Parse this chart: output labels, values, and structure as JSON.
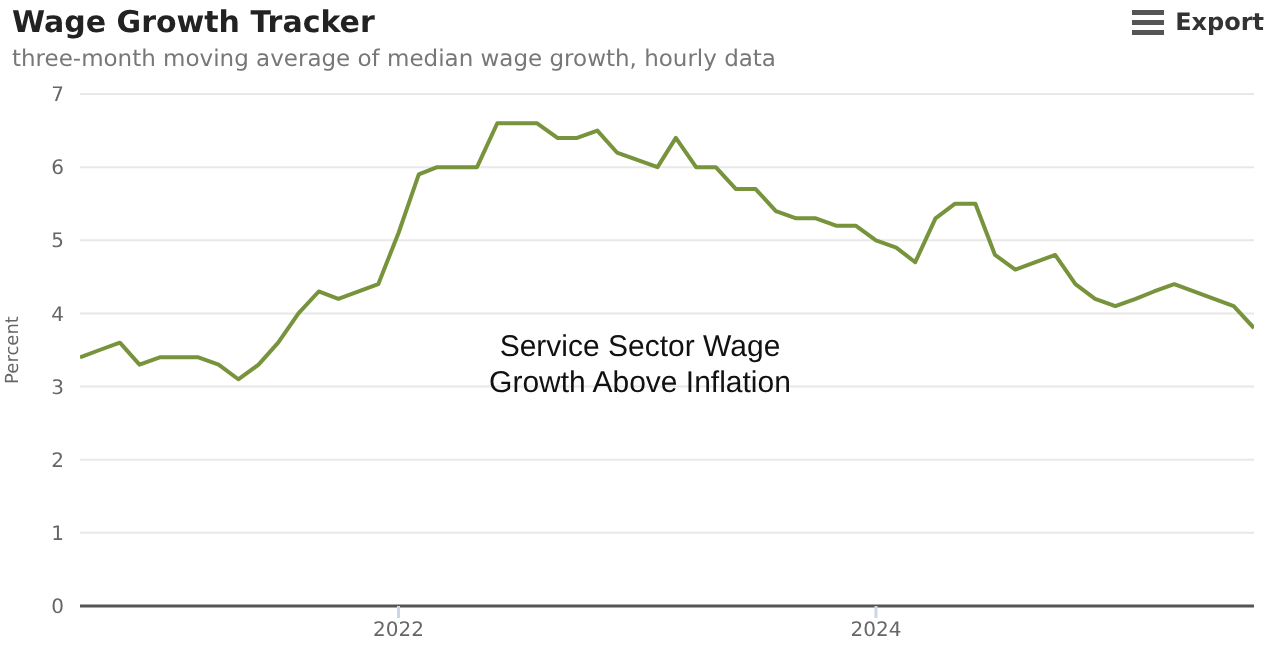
{
  "chart_data": {
    "type": "line",
    "title": "Wage Growth Tracker",
    "subtitle": "three-month moving average of median wage growth, hourly data",
    "ylabel": "Percent",
    "annotations": [
      "Service Sector Wage Growth Above Inflation",
      "Export"
    ],
    "x": [
      "2020-09",
      "2020-10",
      "2020-11",
      "2020-12",
      "2021-01",
      "2021-02",
      "2021-03",
      "2021-04",
      "2021-05",
      "2021-06",
      "2021-07",
      "2021-08",
      "2021-09",
      "2021-10",
      "2021-11",
      "2021-12",
      "2022-01",
      "2022-02",
      "2022-03",
      "2022-04",
      "2022-05",
      "2022-06",
      "2022-07",
      "2022-08",
      "2022-09",
      "2022-10",
      "2022-11",
      "2022-12",
      "2023-01",
      "2023-02",
      "2023-03",
      "2023-04",
      "2023-05",
      "2023-06",
      "2023-07",
      "2023-08",
      "2023-09",
      "2023-10",
      "2023-11",
      "2023-12",
      "2024-01",
      "2024-02",
      "2024-03",
      "2024-04",
      "2024-05",
      "2024-06",
      "2024-07",
      "2024-08",
      "2024-09",
      "2024-10",
      "2024-11",
      "2024-12",
      "2025-01",
      "2025-02",
      "2025-03",
      "2025-04",
      "2025-05",
      "2025-06",
      "2025-07",
      "2025-08"
    ],
    "series": [
      {
        "color": "#77933c",
        "values": [
          3.4,
          3.5,
          3.6,
          3.3,
          3.4,
          3.4,
          3.4,
          3.3,
          3.1,
          3.3,
          3.6,
          4.0,
          4.3,
          4.2,
          4.3,
          4.4,
          5.1,
          5.9,
          6.0,
          6.0,
          6.0,
          6.6,
          6.6,
          6.6,
          6.4,
          6.4,
          6.5,
          6.2,
          6.1,
          6.0,
          6.4,
          6.0,
          6.0,
          5.7,
          5.7,
          5.4,
          5.3,
          5.3,
          5.2,
          5.2,
          5.0,
          4.9,
          4.7,
          5.3,
          5.5,
          5.5,
          4.8,
          4.6,
          4.7,
          4.8,
          4.4,
          4.2,
          4.1,
          4.2,
          4.3,
          4.4,
          4.3,
          4.2,
          4.1,
          3.8
        ]
      }
    ],
    "xlim": [
      "2020-09",
      "2025-08"
    ],
    "xticks": [
      "2022",
      "2024"
    ],
    "ylim": [
      0,
      7
    ],
    "yticks": [
      0,
      1,
      2,
      3,
      4,
      5,
      6,
      7
    ],
    "grid": "y",
    "legend": false,
    "marker": "none",
    "line_style": "solid"
  }
}
